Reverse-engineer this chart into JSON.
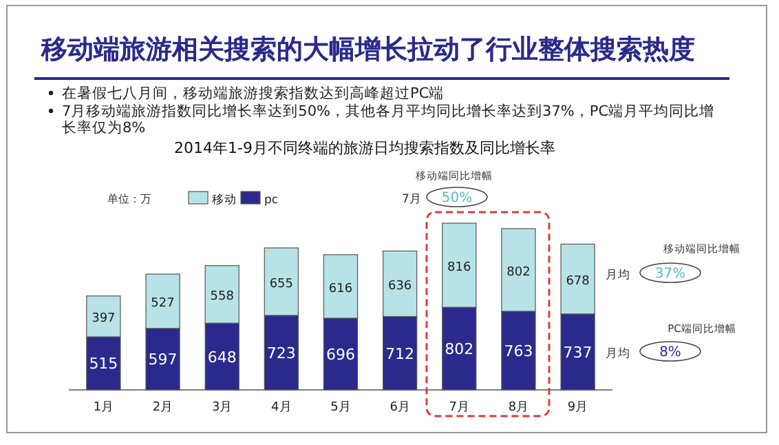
{
  "chart_data": {
    "type": "bar",
    "stacked": true,
    "data_labels": true,
    "legend": "top left",
    "title": "移动端旅游相关搜索的大幅增长拉动了行业整体搜索热度",
    "subtitle": "2014年1-9月不同终端的旅游日均搜索指数及同比增长率",
    "categories": [
      "1月",
      "2月",
      "3月",
      "4月",
      "5月",
      "6月",
      "7月",
      "8月",
      "9月"
    ],
    "series": [
      {
        "name": "pc",
        "color": "#2b2a8c",
        "values": [
          515,
          597,
          648,
          723,
          696,
          712,
          802,
          763,
          737
        ]
      },
      {
        "name": "移动",
        "color": "#b7e3e6",
        "values": [
          397,
          527,
          558,
          655,
          616,
          636,
          816,
          802,
          678
        ]
      }
    ],
    "annotations": [
      "在暑假七八月间，移动端旅游搜索指数达到高峰超过PC端",
      "7月移动端旅游指数同比增长率达到50%，其他各月平均同比增长率达到37%，PC端月平均同比增长率仅为8%",
      "单位：万",
      "移动端同比增幅",
      "7月",
      "50%",
      "移动端同比增幅",
      "月均",
      "37%",
      "PC端同比增幅",
      "月均",
      "8%"
    ]
  }
}
